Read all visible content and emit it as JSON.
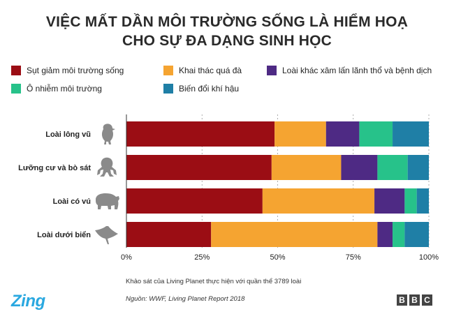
{
  "title_line1": "VIỆC MẤT DẦN MÔI TRƯỜNG SỐNG LÀ HIỂM HOẠ",
  "title_line2": "CHO SỰ ĐA DẠNG SINH HỌC",
  "legend": [
    {
      "label": "Sụt giảm môi trường sống",
      "color": "#9b0d14"
    },
    {
      "label": "Khai thác quá đà",
      "color": "#f5a431"
    },
    {
      "label": "Loài khác xâm lấn lãnh thổ và bệnh dịch",
      "color": "#4e2a84"
    },
    {
      "label": "Ô nhiễm môi trường",
      "color": "#27c28a"
    },
    {
      "label": "Biến đổi khí hậu",
      "color": "#1f7fa6"
    }
  ],
  "chart_data": {
    "type": "bar",
    "orientation": "horizontal",
    "stacked": true,
    "categories": [
      "Loài lông vũ",
      "Lưỡng cư và bò sát",
      "Loài có vú",
      "Loài dưới biển"
    ],
    "category_icons": [
      "bird-icon",
      "frog-icon",
      "bear-icon",
      "manta-ray-icon"
    ],
    "series": [
      {
        "name": "Sụt giảm môi trường sống",
        "color": "#9b0d14",
        "values": [
          49,
          48,
          45,
          28
        ]
      },
      {
        "name": "Khai thác quá đà",
        "color": "#f5a431",
        "values": [
          17,
          23,
          37,
          55
        ]
      },
      {
        "name": "Loài khác xâm lấn lãnh thổ và bệnh dịch",
        "color": "#4e2a84",
        "values": [
          11,
          12,
          10,
          5
        ]
      },
      {
        "name": "Ô nhiễm môi trường",
        "color": "#27c28a",
        "values": [
          11,
          10,
          4,
          4
        ]
      },
      {
        "name": "Biến đổi khí hậu",
        "color": "#1f7fa6",
        "values": [
          12,
          7,
          4,
          8
        ]
      }
    ],
    "xlim": [
      0,
      100
    ],
    "xticks": [
      "0%",
      "25%",
      "50%",
      "75%",
      "100%"
    ],
    "grid": true,
    "legend_position": "top"
  },
  "note": "Khảo sát của Living Planet thực hiện với quần thể 3789 loài",
  "source": "Nguồn: WWF, Living Planet Report 2018",
  "brand_left": "Zing",
  "brand_right": [
    "B",
    "B",
    "C"
  ]
}
